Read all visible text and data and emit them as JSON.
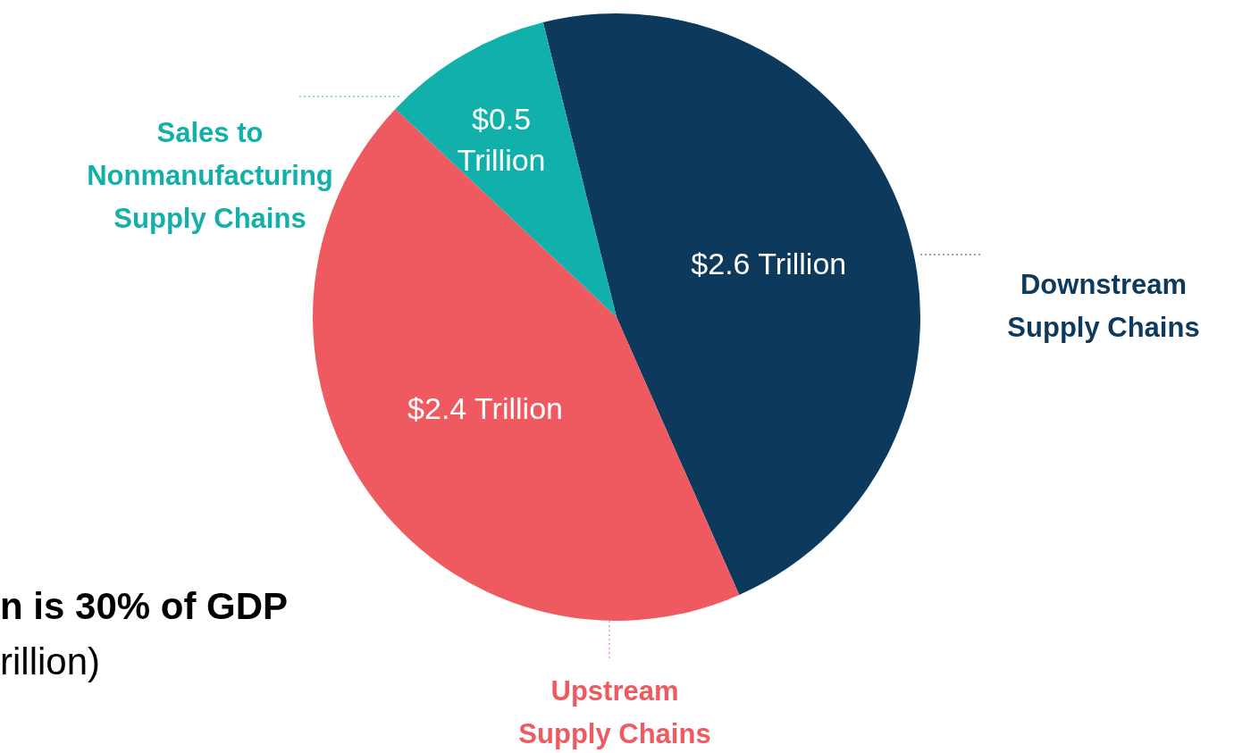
{
  "chart_data": {
    "type": "pie",
    "categories": [
      "Downstream Supply Chains",
      "Upstream Supply Chains",
      "Sales to Nonmanufacturing Supply Chains"
    ],
    "values": [
      2.6,
      2.4,
      0.5
    ],
    "colors": [
      "#0d3a5c",
      "#ef5a60",
      "#12b0aa"
    ],
    "value_labels": [
      "$2.6 Trillion",
      "$2.4 Trillion",
      "$0.5 Trillion"
    ],
    "annotations": [
      "n is 30% of GDP",
      "rillion)"
    ]
  }
}
